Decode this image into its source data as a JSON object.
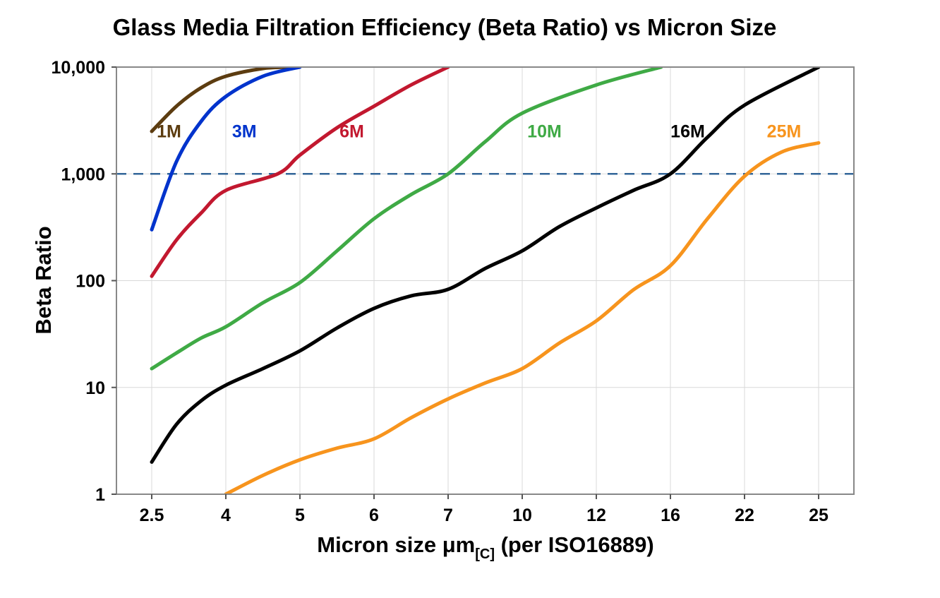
{
  "title": "Glass Media Filtration Efficiency (Beta Ratio) vs Micron Size",
  "chart_data": {
    "type": "line",
    "title": "Glass Media Filtration Efficiency (Beta Ratio) vs Micron Size",
    "xlabel_main": "Micron size μm",
    "xlabel_sub": "[C]",
    "xlabel_suffix": " (per ISO16889)",
    "ylabel": "Beta Ratio",
    "x_scale": "categorical",
    "y_scale": "log",
    "x_ticks": [
      2.5,
      4,
      5,
      6,
      7,
      10,
      12,
      16,
      22,
      25
    ],
    "x_tick_labels": [
      "2.5",
      "4",
      "5",
      "6",
      "7",
      "10",
      "12",
      "16",
      "22",
      "25"
    ],
    "y_ticks": [
      1,
      10,
      100,
      1000,
      10000
    ],
    "y_tick_labels": [
      "1",
      "10",
      "100",
      "1,000",
      "10,000"
    ],
    "ylim": [
      1,
      10000
    ],
    "grid": true,
    "grid_color": "#d9d9d9",
    "border_color": "#888888",
    "reference_line": {
      "y": 1000,
      "color": "#336699",
      "style": "dashed"
    },
    "series": [
      {
        "name": "1M",
        "color": "#5c3c10",
        "label_at": {
          "x": 2.85,
          "y": 2200
        },
        "points": [
          [
            2.5,
            2500
          ],
          [
            3,
            4300
          ],
          [
            3.5,
            6400
          ],
          [
            4,
            8200
          ],
          [
            4.5,
            9700
          ],
          [
            4.9,
            10000
          ]
        ]
      },
      {
        "name": "3M",
        "color": "#0033cc",
        "label_at": {
          "x": 4.25,
          "y": 2200
        },
        "points": [
          [
            2.5,
            300
          ],
          [
            3,
            1300
          ],
          [
            3.5,
            3100
          ],
          [
            4,
            5300
          ],
          [
            4.5,
            8200
          ],
          [
            5,
            10000
          ]
        ]
      },
      {
        "name": "6M",
        "color": "#c2182f",
        "label_at": {
          "x": 5.7,
          "y": 2200
        },
        "points": [
          [
            2.5,
            110
          ],
          [
            3,
            240
          ],
          [
            3.5,
            430
          ],
          [
            4,
            700
          ],
          [
            4.7,
            1000
          ],
          [
            5,
            1500
          ],
          [
            5.5,
            2700
          ],
          [
            6,
            4300
          ],
          [
            6.5,
            6800
          ],
          [
            7,
            10000
          ]
        ]
      },
      {
        "name": "10M",
        "color": "#3faa45",
        "label_at": {
          "x": 10.6,
          "y": 2200
        },
        "points": [
          [
            2.5,
            15
          ],
          [
            3,
            21
          ],
          [
            3.5,
            29
          ],
          [
            4,
            37
          ],
          [
            4.5,
            62
          ],
          [
            5,
            96
          ],
          [
            5.5,
            190
          ],
          [
            6,
            380
          ],
          [
            6.5,
            640
          ],
          [
            7,
            1000
          ],
          [
            8.5,
            2000
          ],
          [
            10,
            3700
          ],
          [
            12,
            6800
          ],
          [
            15.5,
            10000
          ]
        ]
      },
      {
        "name": "16M",
        "color": "#000000",
        "label_at": {
          "x": 17.4,
          "y": 2200
        },
        "points": [
          [
            2.5,
            2
          ],
          [
            3,
            4.5
          ],
          [
            3.5,
            7.5
          ],
          [
            4,
            10.5
          ],
          [
            4.5,
            15
          ],
          [
            5,
            22
          ],
          [
            5.5,
            36
          ],
          [
            6,
            55
          ],
          [
            6.5,
            72
          ],
          [
            7,
            83
          ],
          [
            8.5,
            130
          ],
          [
            10,
            190
          ],
          [
            11,
            320
          ],
          [
            12,
            480
          ],
          [
            14,
            700
          ],
          [
            16,
            1000
          ],
          [
            19,
            2200
          ],
          [
            22,
            4400
          ],
          [
            25,
            10000
          ]
        ]
      },
      {
        "name": "25M",
        "color": "#f7941d",
        "label_at": {
          "x": 23.6,
          "y": 2200
        },
        "points": [
          [
            4,
            1
          ],
          [
            4.5,
            1.5
          ],
          [
            5,
            2.1
          ],
          [
            5.5,
            2.7
          ],
          [
            6,
            3.3
          ],
          [
            6.5,
            5.2
          ],
          [
            7,
            7.8
          ],
          [
            8.5,
            11
          ],
          [
            10,
            15
          ],
          [
            11,
            26
          ],
          [
            12,
            42
          ],
          [
            14,
            82
          ],
          [
            16,
            138
          ],
          [
            19,
            380
          ],
          [
            22,
            950
          ],
          [
            23.5,
            1600
          ],
          [
            25,
            1950
          ]
        ]
      }
    ]
  }
}
